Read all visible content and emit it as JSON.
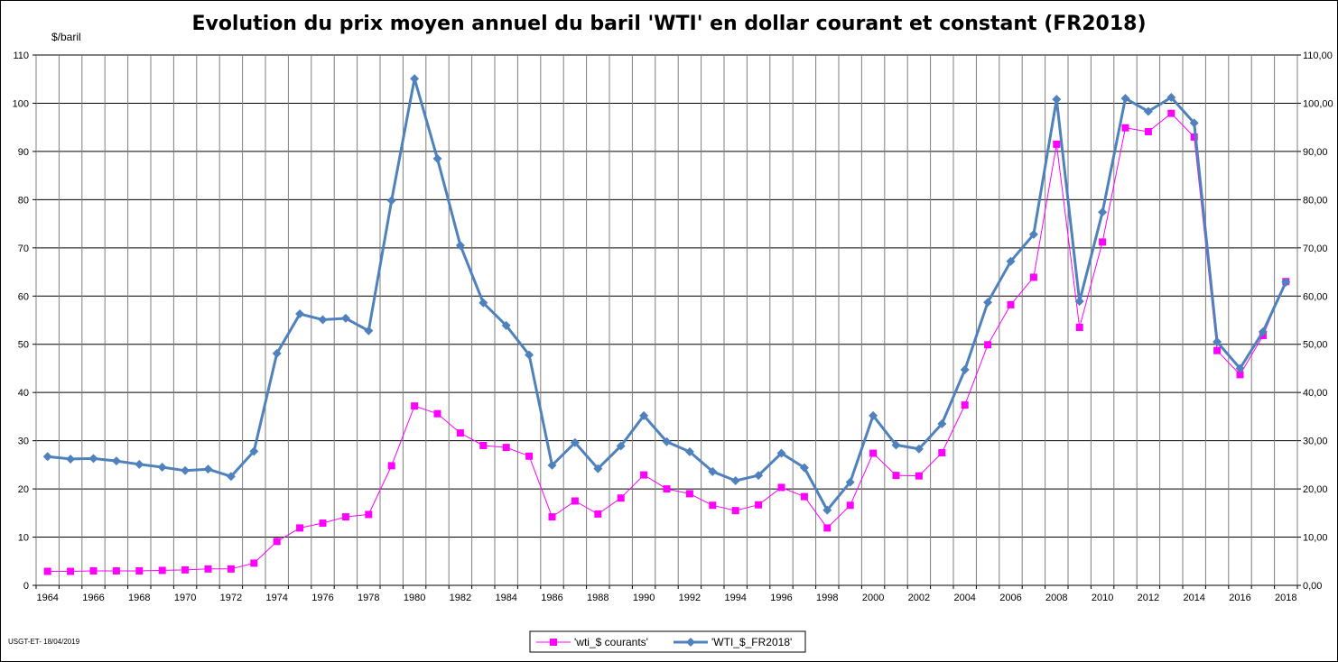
{
  "chart_data": {
    "type": "line",
    "title": "Evolution du prix moyen annuel du baril 'WTI' en dollar courant et constant (FR2018)",
    "ylabel": "$/baril",
    "footer_note": "USGT-ET- 18/04/2019",
    "x": [
      1964,
      1965,
      1966,
      1967,
      1968,
      1969,
      1970,
      1971,
      1972,
      1973,
      1974,
      1975,
      1976,
      1977,
      1978,
      1979,
      1980,
      1981,
      1982,
      1983,
      1984,
      1985,
      1986,
      1987,
      1988,
      1989,
      1990,
      1991,
      1992,
      1993,
      1994,
      1995,
      1996,
      1997,
      1998,
      1999,
      2000,
      2001,
      2002,
      2003,
      2004,
      2005,
      2006,
      2007,
      2008,
      2009,
      2010,
      2011,
      2012,
      2013,
      2014,
      2015,
      2016,
      2017,
      2018
    ],
    "x_tick_labels": [
      "1964",
      "1966",
      "1968",
      "1970",
      "1972",
      "1974",
      "1976",
      "1978",
      "1980",
      "1982",
      "1984",
      "1986",
      "1988",
      "1990",
      "1992",
      "1994",
      "1996",
      "1998",
      "2000",
      "2002",
      "2004",
      "2006",
      "2008",
      "2010",
      "2012",
      "2014",
      "2016",
      "2018"
    ],
    "ylim": [
      0,
      110
    ],
    "y_ticks_left": [
      "0",
      "10",
      "20",
      "30",
      "40",
      "50",
      "60",
      "70",
      "80",
      "90",
      "100",
      "110"
    ],
    "y_ticks_right": [
      "0,00",
      "10,00",
      "20,00",
      "30,00",
      "40,00",
      "50,00",
      "60,00",
      "70,00",
      "80,00",
      "90,00",
      "100,00",
      "110,00"
    ],
    "grid": true,
    "legend_position": "bottom-center",
    "series": [
      {
        "name": "'wti_$ courants'",
        "color": "#ff00ff",
        "marker": "square",
        "values": [
          2.9,
          2.9,
          3.0,
          3.0,
          3.0,
          3.1,
          3.2,
          3.4,
          3.4,
          4.6,
          9.1,
          11.9,
          12.9,
          14.2,
          14.7,
          24.8,
          37.2,
          35.6,
          31.6,
          29.0,
          28.6,
          26.8,
          14.2,
          17.5,
          14.8,
          18.1,
          22.9,
          20.0,
          19.0,
          16.6,
          15.5,
          16.7,
          20.3,
          18.4,
          11.9,
          16.6,
          27.4,
          22.8,
          22.7,
          27.5,
          37.4,
          49.9,
          58.2,
          63.9,
          91.5,
          53.5,
          71.2,
          94.9,
          94.1,
          97.9,
          93.0,
          48.7,
          43.7,
          51.8,
          63.0
        ]
      },
      {
        "name": "'WTI_$_FR2018'",
        "color": "#4f81bd",
        "marker": "diamond",
        "values": [
          26.7,
          26.2,
          26.3,
          25.8,
          25.1,
          24.5,
          23.8,
          24.1,
          22.6,
          27.8,
          48.1,
          56.3,
          55.1,
          55.4,
          52.8,
          79.8,
          105.1,
          88.5,
          70.5,
          58.6,
          53.9,
          47.8,
          24.9,
          29.6,
          24.2,
          28.9,
          35.2,
          29.8,
          27.7,
          23.6,
          21.7,
          22.8,
          27.4,
          24.4,
          15.6,
          21.4,
          35.2,
          29.1,
          28.3,
          33.5,
          44.7,
          58.7,
          67.2,
          72.8,
          100.8,
          58.9,
          77.4,
          101.0,
          98.3,
          101.2,
          95.9,
          50.5,
          45.0,
          52.6,
          62.9
        ]
      }
    ]
  }
}
